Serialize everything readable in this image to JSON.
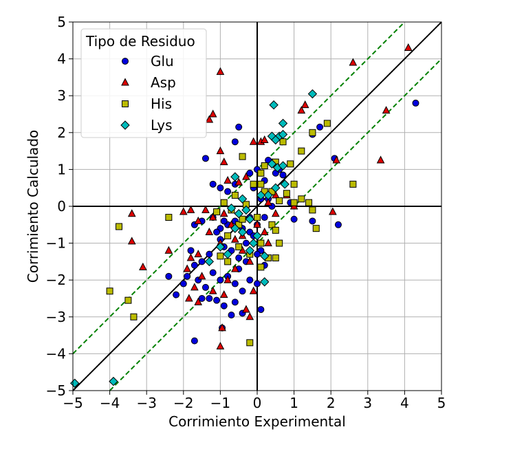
{
  "chart_data": {
    "type": "scatter",
    "title": "",
    "xlabel": "Corrimiento Experimental",
    "ylabel": "Corrimiento Calculado",
    "xlim": [
      -5,
      5
    ],
    "ylim": [
      -5,
      5
    ],
    "xticks": [
      -5,
      -4,
      -3,
      -2,
      -1,
      0,
      1,
      2,
      3,
      4,
      5
    ],
    "yticks": [
      -5,
      -4,
      -3,
      -2,
      -1,
      0,
      1,
      2,
      3,
      4,
      5
    ],
    "tick_labels_x": [
      "−5",
      "−4",
      "−3",
      "−2",
      "−1",
      "0",
      "1",
      "2",
      "3",
      "4",
      "5"
    ],
    "tick_labels_y": [
      "−5",
      "−4",
      "−3",
      "−2",
      "−1",
      "0",
      "1",
      "2",
      "3",
      "4",
      "5"
    ],
    "grid": true,
    "reference_lines": {
      "identity": {
        "slope": 1,
        "intercept": 0,
        "color": "#000000",
        "style": "solid"
      },
      "upper_band": {
        "slope": 1,
        "intercept": 1,
        "color": "#008000",
        "style": "dashed"
      },
      "lower_band": {
        "slope": 1,
        "intercept": -1,
        "color": "#008000",
        "style": "dashed"
      },
      "zero_axes": {
        "color": "#000000",
        "style": "solid"
      }
    },
    "legend": {
      "title": "Tipo de Residuo",
      "placement": "top-left"
    },
    "series": [
      {
        "name": "Glu",
        "marker": "circle",
        "color": "#0000dd",
        "points": [
          [
            4.3,
            2.8
          ],
          [
            2.1,
            1.3
          ],
          [
            1.7,
            2.15
          ],
          [
            1.5,
            1.95
          ],
          [
            2.2,
            -0.5
          ],
          [
            1.5,
            -0.4
          ],
          [
            1.0,
            -0.35
          ],
          [
            0.9,
            0.1
          ],
          [
            0.7,
            0.85
          ],
          [
            0.6,
            1.0
          ],
          [
            0.5,
            0.9
          ],
          [
            0.4,
            1.2
          ],
          [
            0.3,
            1.25
          ],
          [
            0.2,
            0.7
          ],
          [
            -0.5,
            2.15
          ],
          [
            -0.6,
            1.75
          ],
          [
            -1.4,
            1.3
          ],
          [
            -1.2,
            0.6
          ],
          [
            -1.0,
            0.5
          ],
          [
            -0.8,
            0.4
          ],
          [
            -0.6,
            0.6
          ],
          [
            -0.2,
            0.9
          ],
          [
            0.0,
            1.0
          ],
          [
            -0.1,
            0.5
          ],
          [
            0.3,
            0.2
          ],
          [
            0.4,
            0.0
          ],
          [
            0.2,
            -0.3
          ],
          [
            0.0,
            -0.5
          ],
          [
            -0.2,
            -0.7
          ],
          [
            -0.4,
            -0.6
          ],
          [
            -0.6,
            -0.4
          ],
          [
            -0.8,
            -0.5
          ],
          [
            -1.0,
            -0.6
          ],
          [
            -1.2,
            -0.3
          ],
          [
            -1.5,
            -0.4
          ],
          [
            -1.7,
            -0.5
          ],
          [
            -1.0,
            -0.9
          ],
          [
            -0.9,
            -1.1
          ],
          [
            -0.7,
            -1.2
          ],
          [
            -0.5,
            -1.4
          ],
          [
            -0.3,
            -1.0
          ],
          [
            -0.1,
            -0.8
          ],
          [
            0.1,
            -1.2
          ],
          [
            0.2,
            -1.6
          ],
          [
            -1.3,
            -1.3
          ],
          [
            -1.5,
            -1.5
          ],
          [
            -1.8,
            -1.2
          ],
          [
            -1.7,
            -1.6
          ],
          [
            -1.9,
            -1.9
          ],
          [
            -2.0,
            -2.1
          ],
          [
            -1.6,
            -2.0
          ],
          [
            -1.4,
            -2.2
          ],
          [
            -1.2,
            -1.8
          ],
          [
            -1.0,
            -2.0
          ],
          [
            -0.8,
            -1.9
          ],
          [
            -0.6,
            -2.1
          ],
          [
            -0.4,
            -2.3
          ],
          [
            -0.2,
            -2.0
          ],
          [
            0.0,
            -2.1
          ],
          [
            0.1,
            -2.8
          ],
          [
            -0.4,
            -2.9
          ],
          [
            -0.7,
            -2.95
          ],
          [
            -0.9,
            -2.7
          ],
          [
            -1.1,
            -2.55
          ],
          [
            -0.6,
            -2.6
          ],
          [
            -2.2,
            -2.4
          ],
          [
            -2.4,
            -1.9
          ],
          [
            -1.7,
            -3.65
          ],
          [
            -0.95,
            -3.3
          ],
          [
            -1.5,
            -2.5
          ],
          [
            -1.3,
            -2.5
          ],
          [
            -0.5,
            -1.7
          ],
          [
            -0.3,
            -1.5
          ],
          [
            0.0,
            -1.3
          ],
          [
            -0.2,
            -0.3
          ],
          [
            0.1,
            0.2
          ],
          [
            -1.1,
            -0.7
          ],
          [
            -0.9,
            -0.4
          ]
        ]
      },
      {
        "name": "Asp",
        "marker": "triangle",
        "color": "#dd0000",
        "points": [
          [
            4.1,
            4.3
          ],
          [
            2.6,
            3.9
          ],
          [
            3.5,
            2.6
          ],
          [
            3.35,
            1.25
          ],
          [
            1.3,
            2.75
          ],
          [
            1.2,
            2.6
          ],
          [
            2.15,
            1.25
          ],
          [
            2.05,
            -0.15
          ],
          [
            -1.0,
            3.65
          ],
          [
            -1.2,
            2.5
          ],
          [
            -1.3,
            2.35
          ],
          [
            -1.0,
            1.5
          ],
          [
            -0.9,
            1.2
          ],
          [
            -0.1,
            1.75
          ],
          [
            0.1,
            1.75
          ],
          [
            0.2,
            1.8
          ],
          [
            -0.8,
            0.7
          ],
          [
            -0.5,
            0.65
          ],
          [
            -0.3,
            0.8
          ],
          [
            -3.4,
            -0.2
          ],
          [
            -3.4,
            -0.95
          ],
          [
            -3.1,
            -1.65
          ],
          [
            -2.4,
            -1.2
          ],
          [
            -1.8,
            -1.4
          ],
          [
            -1.9,
            -1.7
          ],
          [
            -1.6,
            -1.3
          ],
          [
            -1.5,
            -1.9
          ],
          [
            -1.7,
            -2.2
          ],
          [
            -1.85,
            -2.5
          ],
          [
            -1.6,
            -2.6
          ],
          [
            -1.2,
            -2.3
          ],
          [
            -0.9,
            -2.4
          ],
          [
            -0.8,
            -2.0
          ],
          [
            -0.6,
            -1.7
          ],
          [
            -0.4,
            -1.2
          ],
          [
            -0.2,
            -1.5
          ],
          [
            -0.1,
            -2.3
          ],
          [
            -0.3,
            -2.8
          ],
          [
            -0.2,
            -3.0
          ],
          [
            -0.95,
            -3.3
          ],
          [
            -1.0,
            -3.8
          ],
          [
            -1.0,
            -1.0
          ],
          [
            -1.3,
            -0.7
          ],
          [
            -1.6,
            -0.4
          ],
          [
            -2.0,
            -0.15
          ],
          [
            -1.8,
            -0.1
          ],
          [
            -1.4,
            -0.1
          ],
          [
            -1.2,
            -0.3
          ],
          [
            -0.9,
            -0.2
          ],
          [
            -0.7,
            -0.5
          ],
          [
            -0.6,
            -0.9
          ],
          [
            -0.4,
            -0.8
          ],
          [
            0.0,
            -0.5
          ],
          [
            0.2,
            -0.7
          ],
          [
            0.3,
            -1.0
          ],
          [
            0.3,
            0.1
          ],
          [
            0.5,
            0.3
          ],
          [
            0.8,
            0.3
          ],
          [
            1.0,
            0.0
          ],
          [
            0.5,
            -0.2
          ]
        ]
      },
      {
        "name": "His",
        "marker": "square",
        "color": "#bbbb00",
        "points": [
          [
            2.6,
            0.6
          ],
          [
            1.9,
            2.25
          ],
          [
            1.5,
            2.0
          ],
          [
            1.2,
            1.5
          ],
          [
            1.0,
            0.6
          ],
          [
            0.9,
            1.15
          ],
          [
            0.7,
            1.75
          ],
          [
            0.5,
            1.2
          ],
          [
            0.2,
            1.1
          ],
          [
            0.1,
            0.9
          ],
          [
            0.1,
            0.6
          ],
          [
            -0.1,
            0.6
          ],
          [
            0.2,
            0.4
          ],
          [
            0.4,
            0.4
          ],
          [
            0.6,
            0.15
          ],
          [
            0.8,
            0.35
          ],
          [
            1.0,
            0.1
          ],
          [
            1.2,
            0.2
          ],
          [
            1.4,
            0.1
          ],
          [
            1.5,
            -0.1
          ],
          [
            1.6,
            -0.6
          ],
          [
            -0.4,
            1.35
          ],
          [
            -0.6,
            0.3
          ],
          [
            -0.9,
            0.1
          ],
          [
            -1.1,
            -0.15
          ],
          [
            -0.5,
            -0.5
          ],
          [
            -0.3,
            0.05
          ],
          [
            0.0,
            -0.3
          ],
          [
            0.4,
            -0.5
          ],
          [
            0.5,
            -0.65
          ],
          [
            -0.8,
            -0.8
          ],
          [
            -0.8,
            -1.5
          ],
          [
            -1.0,
            -1.35
          ],
          [
            -0.5,
            -1.1
          ],
          [
            -0.2,
            -1.3
          ],
          [
            0.1,
            -1.0
          ],
          [
            0.3,
            -1.4
          ],
          [
            0.5,
            -1.4
          ],
          [
            0.1,
            -1.65
          ],
          [
            -2.4,
            -0.3
          ],
          [
            -3.75,
            -0.55
          ],
          [
            -4.0,
            -2.3
          ],
          [
            -3.5,
            -2.55
          ],
          [
            -3.35,
            -3.0
          ],
          [
            -0.2,
            -3.7
          ],
          [
            -0.4,
            -0.35
          ],
          [
            -0.7,
            -0.1
          ],
          [
            0.6,
            -1.0
          ]
        ]
      },
      {
        "name": "Lys",
        "marker": "diamond",
        "color": "#00bbbb",
        "points": [
          [
            1.5,
            3.05
          ],
          [
            0.45,
            2.75
          ],
          [
            0.7,
            2.25
          ],
          [
            0.4,
            1.9
          ],
          [
            0.6,
            1.9
          ],
          [
            0.7,
            1.95
          ],
          [
            0.5,
            1.8
          ],
          [
            0.4,
            1.15
          ],
          [
            0.55,
            1.05
          ],
          [
            0.7,
            1.1
          ],
          [
            0.75,
            0.6
          ],
          [
            0.5,
            0.5
          ],
          [
            0.3,
            0.3
          ],
          [
            0.1,
            0.3
          ],
          [
            -0.6,
            0.8
          ],
          [
            -0.4,
            0.2
          ],
          [
            -0.3,
            -0.1
          ],
          [
            -0.5,
            -0.2
          ],
          [
            -0.7,
            -0.05
          ],
          [
            -0.6,
            -0.6
          ],
          [
            -0.4,
            -0.7
          ],
          [
            -0.2,
            -0.35
          ],
          [
            0.0,
            -0.8
          ],
          [
            -0.1,
            -1.0
          ],
          [
            -1.0,
            -1.1
          ],
          [
            -0.8,
            -1.3
          ],
          [
            0.2,
            -1.35
          ],
          [
            0.2,
            -2.05
          ],
          [
            -1.3,
            -1.5
          ],
          [
            -0.2,
            -1.2
          ],
          [
            -4.95,
            -4.8
          ],
          [
            -3.9,
            -4.75
          ]
        ]
      }
    ]
  }
}
